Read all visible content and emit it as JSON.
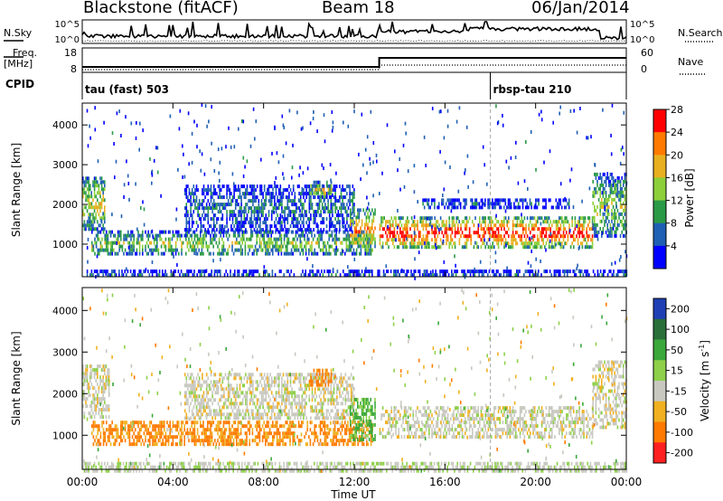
{
  "header": {
    "station": "Blackstone (fitACF)",
    "beam": "Beam 18",
    "date": "06/Jan/2014"
  },
  "top_panels": {
    "nsky_label": "N.Sky",
    "nsky_ticks": [
      "10^5",
      "10^0"
    ],
    "nsearch_label": "N.Search",
    "nsearch_ticks": [
      "10^5",
      "10^0"
    ],
    "freq_label": "Freq.",
    "freq_unit": "[MHz]",
    "freq_ticks": [
      "18",
      "8"
    ],
    "nave_label": "Nave",
    "nave_ticks": [
      "60",
      "0"
    ],
    "cpid_label": "CPID",
    "cpid_segments": [
      {
        "name": "tau (fast) 503",
        "start_hour": 0
      },
      {
        "name": "rbsp-tau 210",
        "start_hour": 18
      }
    ]
  },
  "chart_data": [
    {
      "type": "heatmap",
      "name": "Power",
      "ylabel": "Slant Range [km]",
      "xlabel": "Time UT",
      "x_ticks": [
        "00:00",
        "04:00",
        "08:00",
        "12:00",
        "16:00",
        "20:00",
        "00:00"
      ],
      "xlim_hours": [
        0,
        24
      ],
      "y_ticks": [
        1000,
        2000,
        3000,
        4000
      ],
      "ylim": [
        180,
        4550
      ],
      "colorbar_label": "Power [dB]",
      "colorbar_ticks": [
        "4",
        "8",
        "12",
        "16",
        "20",
        "24",
        "28"
      ],
      "colorbar_range": [
        0,
        30
      ],
      "colors": [
        "#0000ff",
        "#1f5fb4",
        "#2a9a46",
        "#8ccf3a",
        "#e8b020",
        "#ff7a00",
        "#ff0000"
      ],
      "echo_regions": [
        {
          "t0": 0.0,
          "t1": 1.0,
          "r0": 1400,
          "r1": 2700,
          "mean": 14
        },
        {
          "t0": 0.4,
          "t1": 12.8,
          "r0": 750,
          "r1": 1350,
          "mean": 12
        },
        {
          "t0": 4.5,
          "t1": 12.0,
          "r0": 1400,
          "r1": 2500,
          "mean": 6
        },
        {
          "t0": 10.0,
          "t1": 11.0,
          "r0": 2200,
          "r1": 2600,
          "mean": 14
        },
        {
          "t0": 11.8,
          "t1": 12.9,
          "r0": 900,
          "r1": 1900,
          "mean": 18
        },
        {
          "t0": 13.1,
          "t1": 22.5,
          "r0": 950,
          "r1": 1700,
          "mean": 24
        },
        {
          "t0": 15.0,
          "t1": 21.5,
          "r0": 1950,
          "r1": 2150,
          "mean": 5
        },
        {
          "t0": 22.5,
          "t1": 24.0,
          "r0": 1200,
          "r1": 2800,
          "mean": 12
        },
        {
          "t0": 0.0,
          "t1": 24.0,
          "r0": 180,
          "r1": 360,
          "mean": 4
        }
      ]
    },
    {
      "type": "heatmap",
      "name": "Velocity",
      "ylabel": "Slant Range [km]",
      "xlabel": "Time UT",
      "x_ticks": [
        "00:00",
        "04:00",
        "08:00",
        "12:00",
        "16:00",
        "20:00",
        "00:00"
      ],
      "xlim_hours": [
        0,
        24
      ],
      "y_ticks": [
        1000,
        2000,
        3000,
        4000
      ],
      "ylim": [
        180,
        4550
      ],
      "colorbar_label": "Velocity [m s",
      "colorbar_label_sup": "-1",
      "colorbar_label_end": "]",
      "colorbar_ticks": [
        "200",
        "100",
        "50",
        "15",
        "-15",
        "-50",
        "-100",
        "-200"
      ],
      "colors": [
        "#1f3fb4",
        "#2a6f3a",
        "#3aa83a",
        "#8ed04a",
        "#c8c8c0",
        "#f0b020",
        "#ff7a00",
        "#ff2020"
      ],
      "echo_regions": [
        {
          "t0": 0.0,
          "t1": 1.2,
          "r0": 1400,
          "r1": 2700,
          "mean": 0
        },
        {
          "t0": 0.4,
          "t1": 12.8,
          "r0": 750,
          "r1": 1350,
          "mean": -40
        },
        {
          "t0": 4.5,
          "t1": 12.0,
          "r0": 1400,
          "r1": 2500,
          "mean": 0
        },
        {
          "t0": 10.0,
          "t1": 11.0,
          "r0": 2200,
          "r1": 2600,
          "mean": -40
        },
        {
          "t0": 11.8,
          "t1": 12.9,
          "r0": 900,
          "r1": 1900,
          "mean": 40
        },
        {
          "t0": 13.1,
          "t1": 22.5,
          "r0": 950,
          "r1": 1700,
          "mean": 0
        },
        {
          "t0": 22.5,
          "t1": 24.0,
          "r0": 1200,
          "r1": 2800,
          "mean": 0
        },
        {
          "t0": 0.0,
          "t1": 24.0,
          "r0": 180,
          "r1": 360,
          "mean": 10
        }
      ]
    }
  ]
}
